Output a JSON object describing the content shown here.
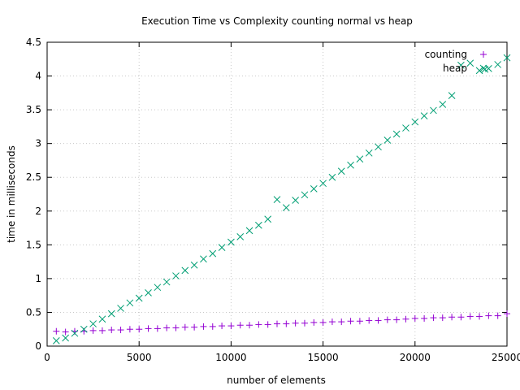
{
  "chart_data": {
    "type": "scatter",
    "title": "Execution Time vs Complexity counting normal vs heap",
    "xlabel": "number of elements",
    "ylabel": "time in milliseconds",
    "xlim": [
      0,
      25000
    ],
    "ylim": [
      0,
      4.5
    ],
    "xticks": [
      0,
      5000,
      10000,
      15000,
      20000,
      25000
    ],
    "yticks": [
      0,
      0.5,
      1,
      1.5,
      2,
      2.5,
      3,
      3.5,
      4,
      4.5
    ],
    "xtick_labels": [
      "0",
      "5000",
      "10000",
      "15000",
      "20000",
      "25000"
    ],
    "ytick_labels": [
      "0",
      "0.5",
      "1",
      "1.5",
      "2",
      "2.5",
      "3",
      "3.5",
      "4",
      "4.5"
    ],
    "grid": true,
    "legend_position": "top-right",
    "series": [
      {
        "name": "counting",
        "marker": "plus",
        "color": "#9400d3",
        "x": [
          500,
          1000,
          1500,
          2000,
          2500,
          3000,
          3500,
          4000,
          4500,
          5000,
          5500,
          6000,
          6500,
          7000,
          7500,
          8000,
          8500,
          9000,
          9500,
          10000,
          10500,
          11000,
          11500,
          12000,
          12500,
          13000,
          13500,
          14000,
          14500,
          15000,
          15500,
          16000,
          16500,
          17000,
          17500,
          18000,
          18500,
          19000,
          19500,
          20000,
          20500,
          21000,
          21500,
          22000,
          22500,
          23000,
          23500,
          24000,
          24500,
          25000
        ],
        "y": [
          0.22,
          0.21,
          0.22,
          0.22,
          0.23,
          0.23,
          0.24,
          0.24,
          0.25,
          0.25,
          0.26,
          0.26,
          0.27,
          0.27,
          0.28,
          0.28,
          0.29,
          0.29,
          0.3,
          0.3,
          0.31,
          0.31,
          0.32,
          0.32,
          0.33,
          0.33,
          0.34,
          0.34,
          0.35,
          0.35,
          0.36,
          0.36,
          0.37,
          0.37,
          0.38,
          0.38,
          0.39,
          0.39,
          0.4,
          0.41,
          0.41,
          0.42,
          0.42,
          0.43,
          0.43,
          0.44,
          0.44,
          0.45,
          0.45,
          0.48
        ]
      },
      {
        "name": "heap",
        "marker": "cross",
        "color": "#009e73",
        "x": [
          500,
          1000,
          1500,
          2000,
          2500,
          3000,
          3500,
          4000,
          4500,
          5000,
          5500,
          6000,
          6500,
          7000,
          7500,
          8000,
          8500,
          9000,
          9500,
          10000,
          10500,
          11000,
          11500,
          12000,
          12500,
          13000,
          13500,
          14000,
          14500,
          15000,
          15500,
          16000,
          16500,
          17000,
          17500,
          18000,
          18500,
          19000,
          19500,
          20000,
          20500,
          21000,
          21500,
          22000,
          22500,
          23000,
          23500,
          23800,
          24000,
          24500,
          25000
        ],
        "y": [
          0.08,
          0.12,
          0.19,
          0.25,
          0.33,
          0.4,
          0.48,
          0.56,
          0.64,
          0.71,
          0.79,
          0.87,
          0.95,
          1.04,
          1.12,
          1.2,
          1.29,
          1.37,
          1.46,
          1.54,
          1.62,
          1.71,
          1.79,
          1.88,
          2.17,
          2.05,
          2.16,
          2.24,
          2.33,
          2.41,
          2.5,
          2.59,
          2.68,
          2.77,
          2.86,
          2.95,
          3.05,
          3.14,
          3.23,
          3.32,
          3.41,
          3.49,
          3.58,
          3.71,
          4.16,
          4.19,
          4.08,
          4.1,
          4.11,
          4.17,
          4.27
        ]
      }
    ]
  }
}
